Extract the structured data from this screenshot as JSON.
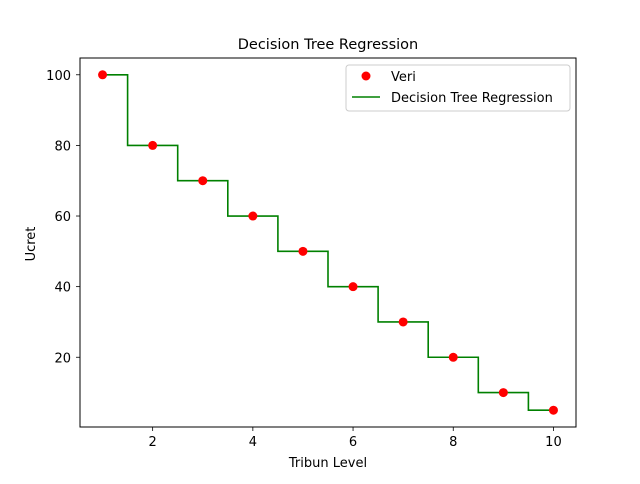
{
  "chart_data": {
    "type": "scatter",
    "title": "Decision Tree Regression",
    "xlabel": "Tribun Level",
    "ylabel": "Ucret",
    "xlim": [
      0.55,
      10.45
    ],
    "ylim": [
      0.25,
      104.75
    ],
    "xticks": [
      2,
      4,
      6,
      8,
      10
    ],
    "yticks": [
      20,
      40,
      60,
      80,
      100
    ],
    "xtick_labels": [
      "2",
      "4",
      "6",
      "8",
      "10"
    ],
    "ytick_labels": [
      "20",
      "40",
      "60",
      "80",
      "100"
    ],
    "grid": false,
    "legend_position": "upper-right",
    "series": [
      {
        "name": "Veri",
        "kind": "scatter",
        "color": "#ff0000",
        "x": [
          1,
          2,
          3,
          4,
          5,
          6,
          7,
          8,
          9,
          10
        ],
        "y": [
          100,
          80,
          70,
          60,
          50,
          40,
          30,
          20,
          10,
          5
        ]
      },
      {
        "name": "Decision Tree Regression",
        "kind": "step-line",
        "color": "#008000",
        "x": [
          1,
          1.5,
          1.5,
          2.5,
          2.5,
          3.5,
          3.5,
          4.5,
          4.5,
          5.5,
          5.5,
          6.5,
          6.5,
          7.5,
          7.5,
          8.5,
          8.5,
          9.5,
          9.5,
          10
        ],
        "y": [
          100,
          100,
          80,
          80,
          70,
          70,
          60,
          60,
          50,
          50,
          40,
          40,
          30,
          30,
          20,
          20,
          10,
          10,
          5,
          5
        ]
      }
    ]
  }
}
